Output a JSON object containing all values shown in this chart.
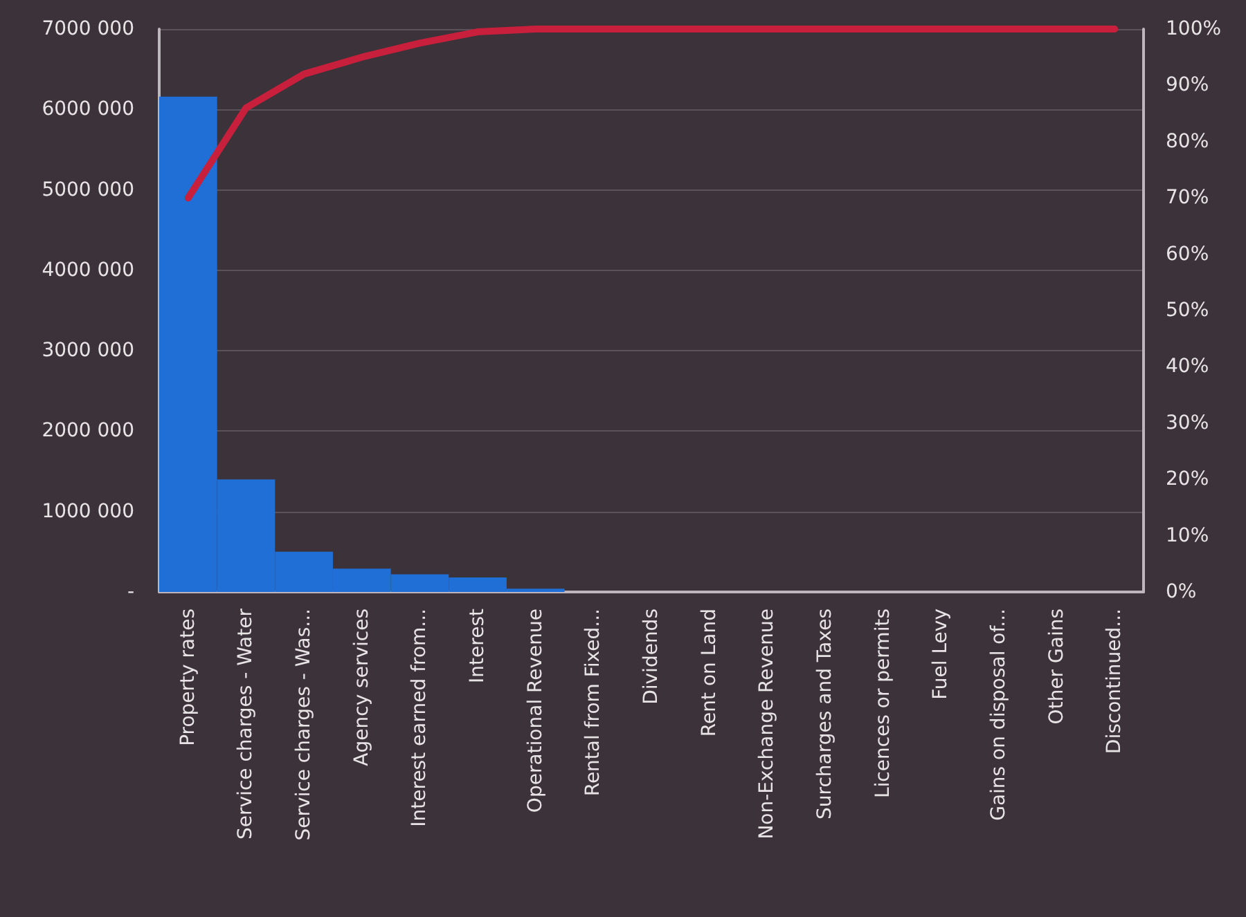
{
  "chart_data": {
    "type": "bar",
    "categories": [
      "Property rates",
      "Service charges - Water",
      "Service charges - Was...",
      "Agency services",
      "Interest earned from...",
      "Interest",
      "Operational Revenue",
      "Rental from Fixed...",
      "Dividends",
      "Rent on Land",
      "Non-Exchange Revenue",
      "Surcharges and Taxes",
      "Licences or permits",
      "Fuel Levy",
      "Gains on disposal of...",
      "Other Gains",
      "Discontinued..."
    ],
    "series": [
      {
        "color": "#1f6fd6",
        "values": [
          6160000,
          1400000,
          500000,
          290000,
          220000,
          180000,
          40000,
          0,
          0,
          0,
          0,
          0,
          0,
          0,
          0,
          0,
          0
        ]
      },
      {
        "type": "line",
        "axis": "y2",
        "color": "#c8203c",
        "values": [
          70,
          86,
          92,
          95,
          97.5,
          99.5,
          100,
          100,
          100,
          100,
          100,
          100,
          100,
          100,
          100,
          100,
          100
        ]
      }
    ],
    "ylim": [
      0,
      7000000
    ],
    "yticks": [
      {
        "value": 0,
        "label": "-"
      },
      {
        "value": 1000000,
        "label": "1000 000"
      },
      {
        "value": 2000000,
        "label": "2000 000"
      },
      {
        "value": 3000000,
        "label": "3000 000"
      },
      {
        "value": 4000000,
        "label": "4000 000"
      },
      {
        "value": 5000000,
        "label": "5000 000"
      },
      {
        "value": 6000000,
        "label": "6000 000"
      },
      {
        "value": 7000000,
        "label": "7000 000"
      }
    ],
    "y2lim": [
      0,
      100
    ],
    "y2ticks": [
      {
        "value": 0,
        "label": "0%"
      },
      {
        "value": 10,
        "label": "10%"
      },
      {
        "value": 20,
        "label": "20%"
      },
      {
        "value": 30,
        "label": "30%"
      },
      {
        "value": 40,
        "label": "40%"
      },
      {
        "value": 50,
        "label": "50%"
      },
      {
        "value": 60,
        "label": "60%"
      },
      {
        "value": 70,
        "label": "70%"
      },
      {
        "value": 80,
        "label": "80%"
      },
      {
        "value": 90,
        "label": "90%"
      },
      {
        "value": 100,
        "label": "100%"
      }
    ],
    "grid": "y",
    "marker": "none"
  }
}
